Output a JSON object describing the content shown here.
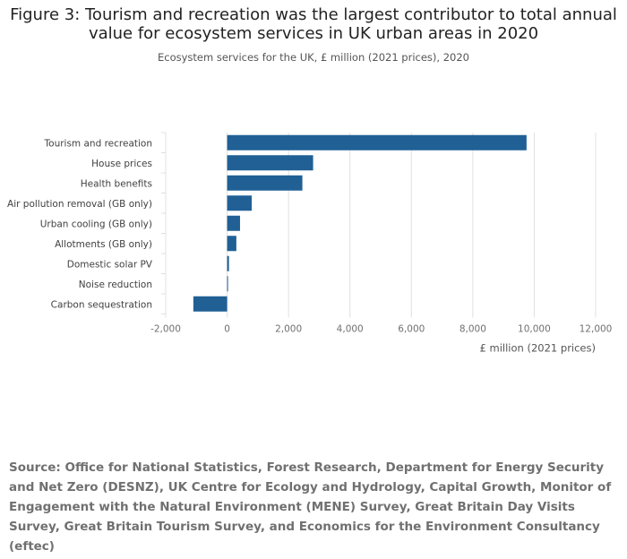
{
  "title_lines": [
    "Figure 3: Tourism and recreation was the largest contributor to total annual",
    "value for ecosystem services in UK urban areas in 2020"
  ],
  "subtitle": "Ecosystem services for the UK, £ million (2021 prices), 2020",
  "source": "Source: Office for National Statistics, Forest Research, Department for Energy Security and Net Zero (DESNZ), UK Centre for Ecology and Hydrology, Capital Growth, Monitor of Engagement with the Natural Environment (MENE) Survey, Great Britain Day Visits Survey, Great Britain Tourism Survey, and Economics for the Environment Consultancy (eftec)",
  "colors": {
    "bar": "#206095",
    "grid": "#e0e0e0",
    "axis_text": "#707070",
    "label_text": "#414042"
  },
  "chart_data": {
    "type": "bar",
    "orientation": "horizontal",
    "categories": [
      "Tourism and recreation",
      "House prices",
      "Health benefits",
      "Air pollution removal (GB only)",
      "Urban cooling (GB only)",
      "Allotments (GB only)",
      "Domestic solar PV",
      "Noise reduction",
      "Carbon sequestration"
    ],
    "values": [
      9750,
      2800,
      2450,
      800,
      420,
      300,
      60,
      10,
      -1100
    ],
    "xlabel": "£ million (2021 prices)",
    "xlim": [
      -2000,
      12000
    ],
    "xticks": [
      -2000,
      0,
      2000,
      4000,
      6000,
      8000,
      10000,
      12000
    ],
    "xtick_labels": [
      "-2,000",
      "0",
      "2,000",
      "4,000",
      "6,000",
      "8,000",
      "10,000",
      "12,000"
    ]
  }
}
